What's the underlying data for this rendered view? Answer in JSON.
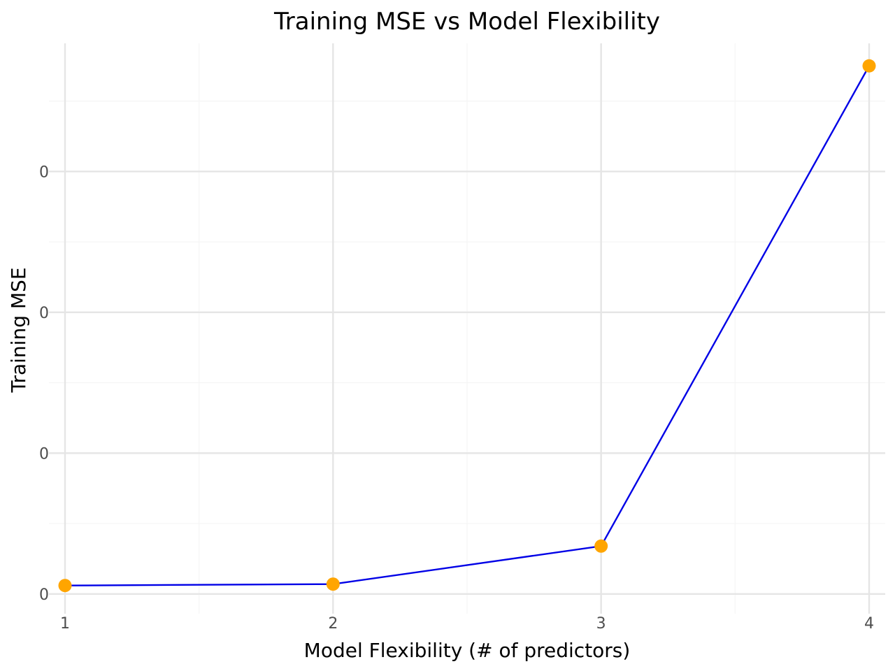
{
  "chart_data": {
    "type": "line",
    "title": "Training MSE vs Model Flexibility",
    "xlabel": "Model Flexibility (# of predictors)",
    "ylabel": "Training MSE",
    "x": [
      1,
      2,
      3,
      4
    ],
    "series": [
      {
        "values": [
          6e-07,
          7e-07,
          3.4e-06,
          3.75e-05
        ]
      }
    ],
    "x_ticks": [
      "1",
      "2",
      "3",
      "4"
    ],
    "y_tick_values": [
      0,
      1e-05,
      2e-05,
      3e-05
    ],
    "y_tick_labels": [
      "0",
      "0",
      "0",
      "0"
    ],
    "xlim": [
      0.94,
      4.06
    ],
    "ylim": [
      -1.4e-06,
      3.91e-05
    ],
    "grid": true,
    "legend": "none",
    "colors": {
      "line": "#0000e6",
      "point": "#ffa500",
      "grid_major": "#e5e5e5",
      "grid_minor": "#f5f5f5"
    }
  }
}
